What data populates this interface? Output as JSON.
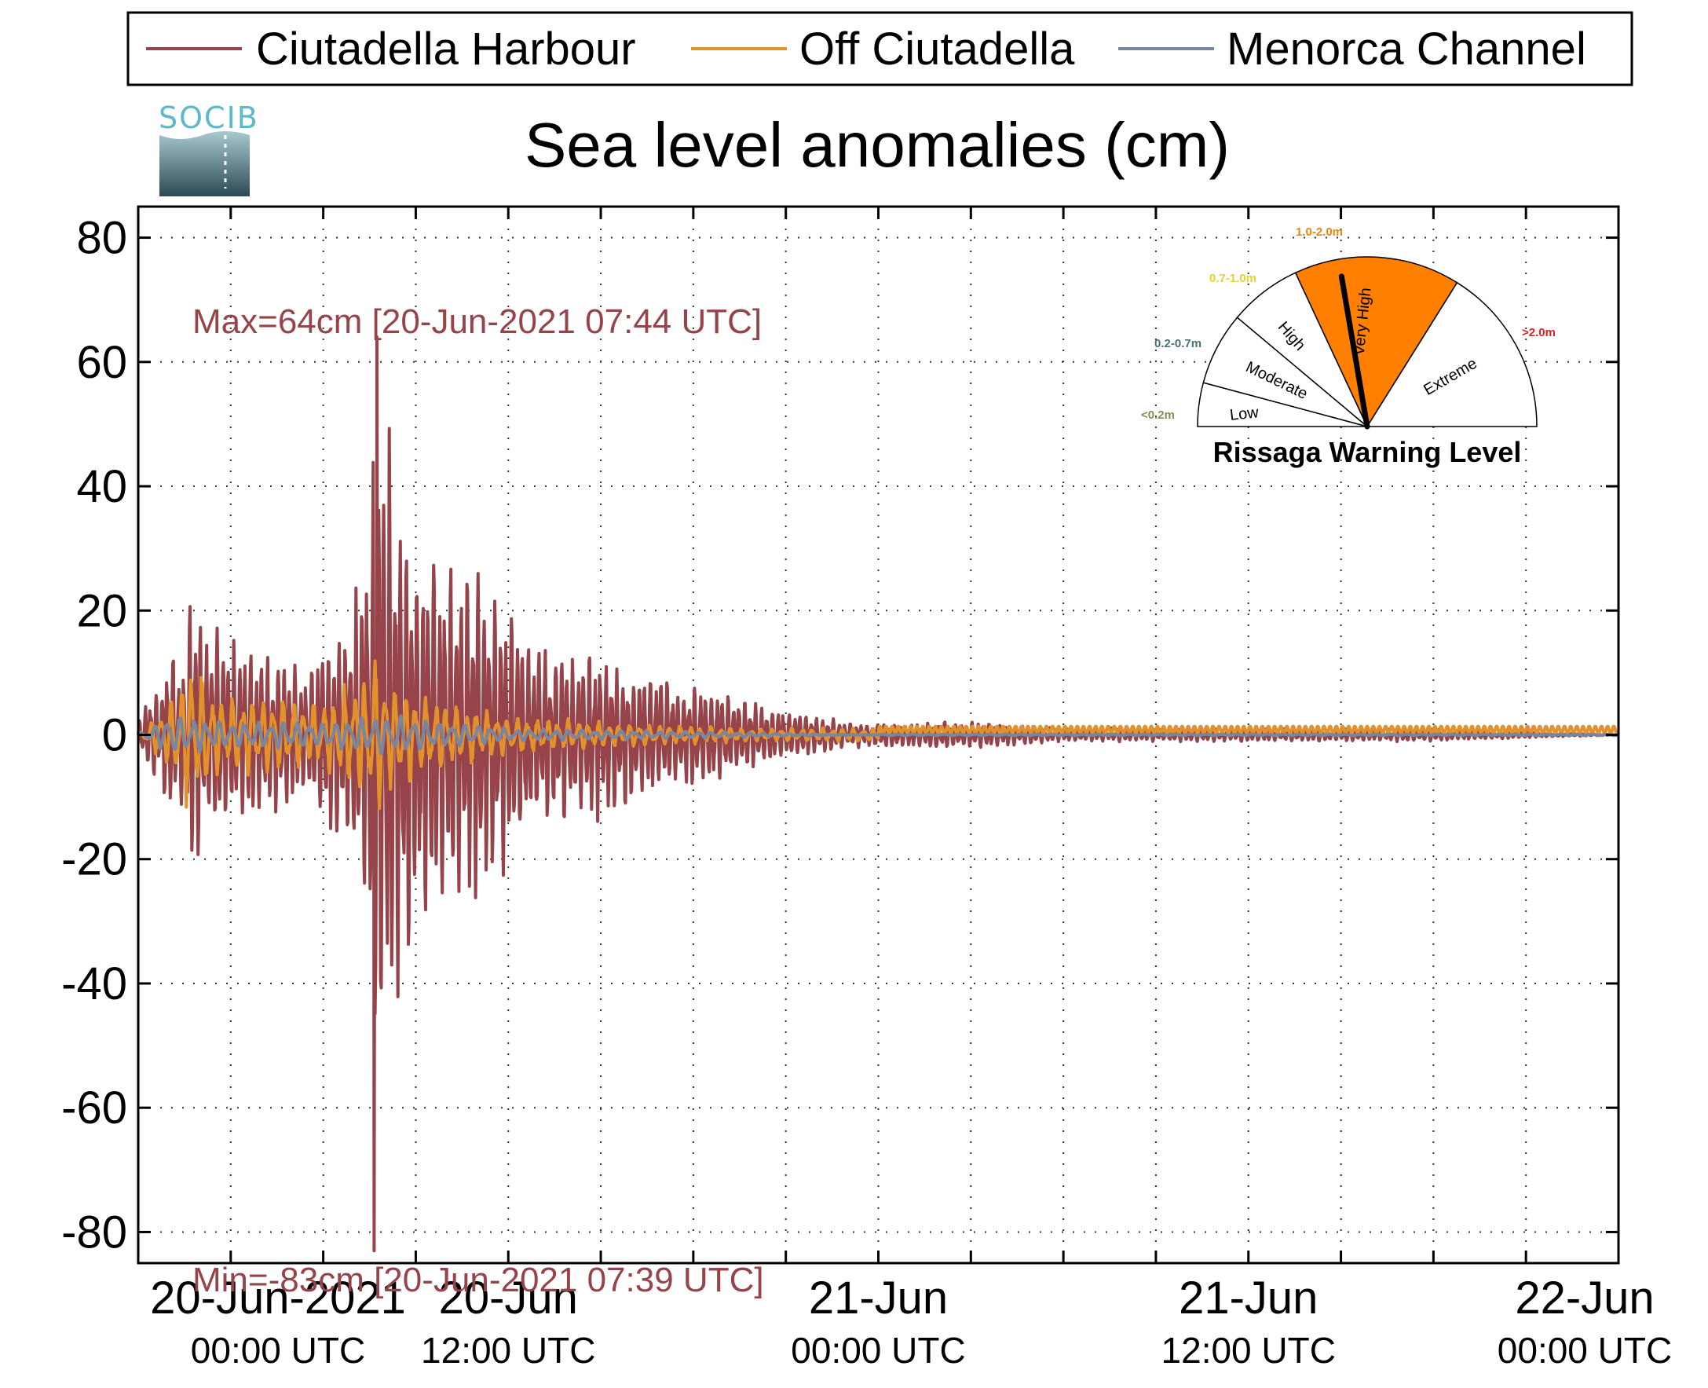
{
  "chart_data": {
    "type": "line",
    "title": "Sea level anomalies (cm)",
    "ylim": [
      -85,
      85
    ],
    "xlim_hours": [
      0,
      48
    ],
    "y_ticks": [
      "80",
      "60",
      "40",
      "20",
      "0",
      "-20",
      "-40",
      "-60",
      "-80"
    ],
    "y_tick_values": [
      80,
      60,
      40,
      20,
      0,
      -20,
      -40,
      -60,
      -80
    ],
    "x_ticks": [
      {
        "hours": 0,
        "line1": "20-Jun-2021",
        "line2": "00:00 UTC"
      },
      {
        "hours": 12,
        "line1": "20-Jun",
        "line2": "12:00 UTC"
      },
      {
        "hours": 24,
        "line1": "21-Jun",
        "line2": "00:00 UTC"
      },
      {
        "hours": 36,
        "line1": "21-Jun",
        "line2": "12:00 UTC"
      },
      {
        "hours": 48,
        "line1": "22-Jun",
        "line2": "00:00 UTC"
      }
    ],
    "legend": [
      {
        "name": "Ciutadella Harbour",
        "color": "#96434a"
      },
      {
        "name": "Off Ciutadella",
        "color": "#e3922b"
      },
      {
        "name": "Menorca Channel",
        "color": "#7a85a0"
      }
    ],
    "series": [
      {
        "name": "Ciutadella Harbour",
        "color": "#96434a",
        "envelope": [
          [
            0,
            2
          ],
          [
            0.5,
            -8
          ],
          [
            0.7,
            6
          ],
          [
            1.0,
            -15
          ],
          [
            1.2,
            12
          ],
          [
            1.5,
            -12
          ],
          [
            1.7,
            22
          ],
          [
            1.9,
            -22
          ],
          [
            2.2,
            15
          ],
          [
            2.6,
            -18
          ],
          [
            3,
            14
          ],
          [
            3.5,
            -14
          ],
          [
            4,
            13
          ],
          [
            4.5,
            -12
          ],
          [
            5,
            11
          ],
          [
            5.5,
            -10
          ],
          [
            6,
            16
          ],
          [
            6.5,
            -16
          ],
          [
            7,
            20
          ],
          [
            7.3,
            -32
          ],
          [
            7.6,
            35
          ],
          [
            7.74,
            64
          ],
          [
            7.65,
            -83
          ],
          [
            7.9,
            55
          ],
          [
            8.2,
            -45
          ],
          [
            8.5,
            38
          ],
          [
            9,
            -30
          ],
          [
            9.5,
            30
          ],
          [
            10,
            -28
          ],
          [
            10.5,
            26
          ],
          [
            11,
            -26
          ],
          [
            11.5,
            22
          ],
          [
            12,
            -20
          ],
          [
            13,
            14
          ],
          [
            14,
            -13
          ],
          [
            15,
            13
          ],
          [
            16,
            -11
          ],
          [
            17,
            9
          ],
          [
            18,
            -8
          ],
          [
            19,
            7
          ],
          [
            20,
            -5
          ],
          [
            21,
            4
          ],
          [
            22,
            -3
          ],
          [
            23,
            2
          ],
          [
            24,
            -2
          ],
          [
            27,
            2
          ],
          [
            30,
            -1
          ],
          [
            36,
            1
          ],
          [
            42,
            1
          ],
          [
            48,
            0
          ]
        ],
        "max_label": "Max=64cm [20-Jun-2021 07:44 UTC]",
        "min_label": "Min=-83cm [20-Jun-2021 07:39 UTC]",
        "max": 64,
        "min": -83
      },
      {
        "name": "Off Ciutadella",
        "color": "#e3922b",
        "envelope": [
          [
            0,
            0
          ],
          [
            1,
            -5
          ],
          [
            1.7,
            12
          ],
          [
            2.5,
            -6
          ],
          [
            4,
            6
          ],
          [
            6,
            -5
          ],
          [
            7.5,
            10
          ],
          [
            7.7,
            -13
          ],
          [
            8,
            9
          ],
          [
            10,
            5
          ],
          [
            12,
            -3
          ],
          [
            15,
            2
          ],
          [
            20,
            -1
          ],
          [
            24,
            1
          ],
          [
            30,
            1
          ],
          [
            36,
            1
          ],
          [
            48,
            1
          ]
        ]
      },
      {
        "name": "Menorca Channel",
        "color": "#7a85a0",
        "envelope": [
          [
            0,
            0
          ],
          [
            1,
            3
          ],
          [
            3,
            -2
          ],
          [
            6,
            2
          ],
          [
            8,
            3
          ],
          [
            10,
            2
          ],
          [
            12,
            1
          ],
          [
            18,
            0.5
          ],
          [
            24,
            0
          ],
          [
            36,
            0
          ],
          [
            48,
            0
          ]
        ]
      }
    ]
  },
  "logo": {
    "text": "SOCIB"
  },
  "gauge": {
    "title": "Rissaga Warning Level",
    "active_level": "Very High",
    "needle_value_fraction": 0.46,
    "segments": [
      {
        "name": "Low",
        "range": "<0.2m",
        "range_color": "#8a8a55",
        "fill": "#ffffff"
      },
      {
        "name": "Moderate",
        "range": "0.2-0.7m",
        "range_color": "#4d7070",
        "fill": "#ffffff"
      },
      {
        "name": "High",
        "range": "0.7-1.0m",
        "range_color": "#e8d02a",
        "fill": "#ffffff"
      },
      {
        "name": "Very High",
        "range": "1.0-2.0m",
        "range_color": "#f0820f",
        "fill": "#ff8000"
      },
      {
        "name": "Extreme",
        "range": ">2.0m",
        "range_color": "#e02020",
        "fill": "#ffffff"
      }
    ]
  }
}
